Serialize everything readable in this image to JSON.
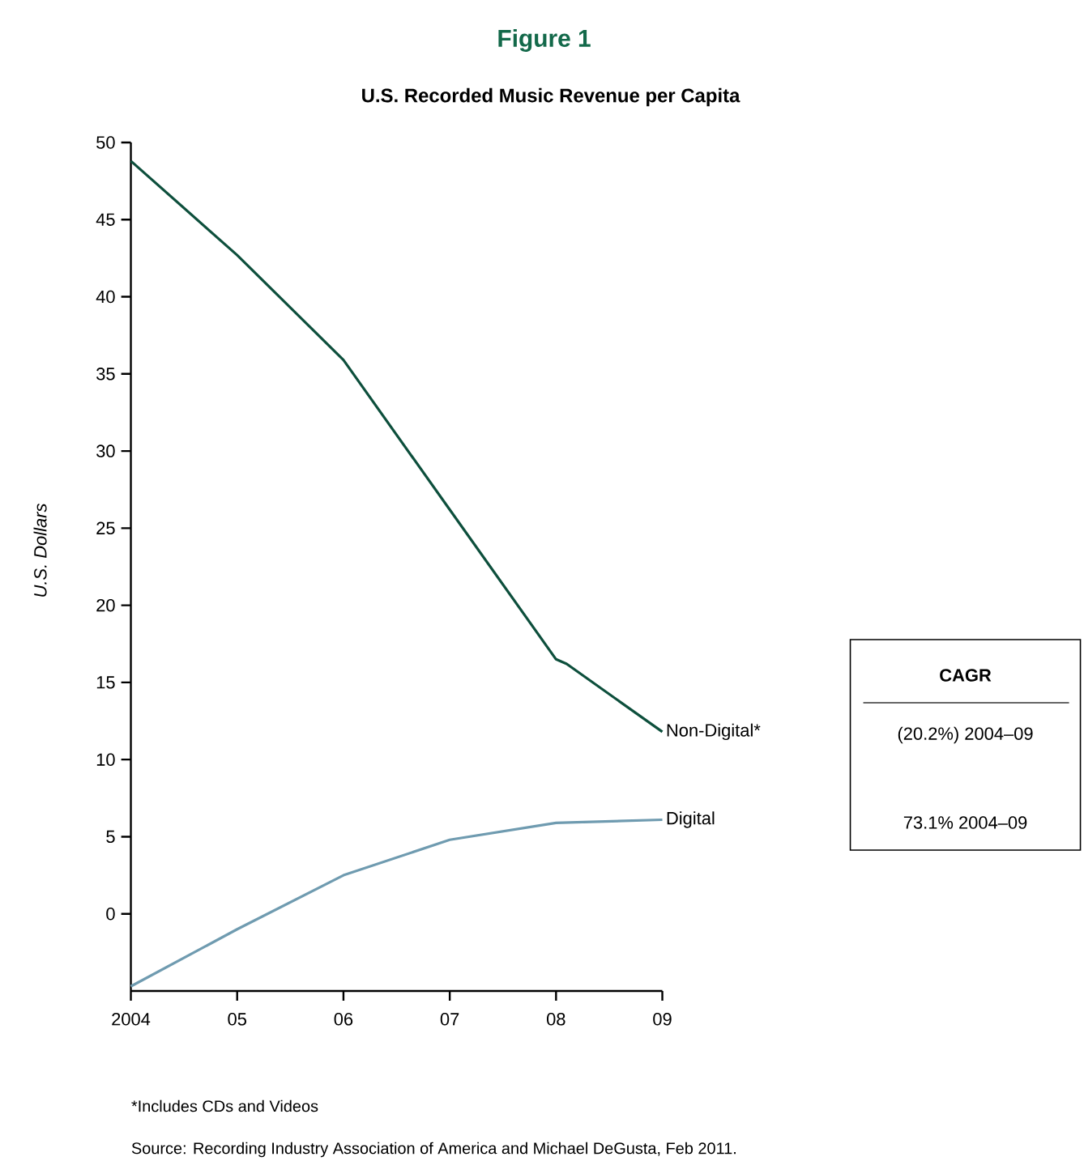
{
  "chart_data": {
    "type": "line",
    "title": "Figure 1",
    "subtitle": "U.S. Recorded Music Revenue per Capita",
    "ylabel": "U.S. Dollars",
    "series": [
      {
        "name": "Non-Digital*",
        "color": "#0d4f3c",
        "x": [
          2004,
          2005,
          2006,
          2007,
          2008,
          2008.1,
          2009
        ],
        "values": [
          48.8,
          42.7,
          35.9,
          26.2,
          16.5,
          16.2,
          11.8
        ]
      },
      {
        "name": "Digital",
        "color": "#6f9bb0",
        "x": [
          2004,
          2005,
          2006,
          2007,
          2008,
          2009
        ],
        "values": [
          -4.7,
          -1.0,
          2.5,
          4.8,
          5.9,
          6.1
        ]
      }
    ],
    "xlim": [
      2004,
      2009
    ],
    "xticks": [
      {
        "value": 2004,
        "label": "2004"
      },
      {
        "value": 2005,
        "label": "05"
      },
      {
        "value": 2006,
        "label": "06"
      },
      {
        "value": 2007,
        "label": "07"
      },
      {
        "value": 2008,
        "label": "08"
      },
      {
        "value": 2009,
        "label": "09"
      }
    ],
    "ylim": [
      -5,
      50
    ],
    "yticks": [
      0,
      5,
      10,
      15,
      20,
      25,
      30,
      35,
      40,
      45,
      50
    ],
    "line_style": "solid",
    "annotations": [
      "CAGR",
      "(20.2%) 2004–09",
      "73.1% 2004–09",
      "*Includes CDs and Videos",
      "Source:  Recording Industry Association of America and Michael DeGusta, Feb 2011."
    ]
  }
}
